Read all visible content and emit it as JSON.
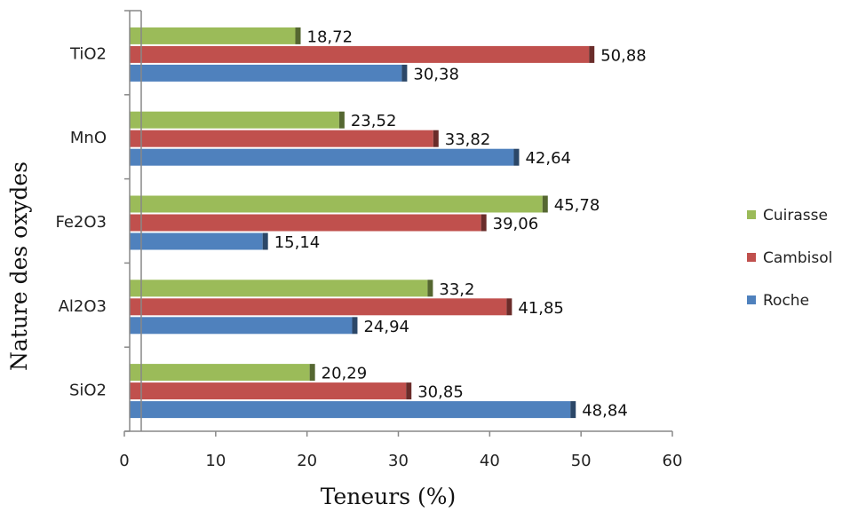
{
  "chart_data": {
    "type": "bar",
    "orientation": "horizontal",
    "categories": [
      "SiO2",
      "Al2O3",
      "Fe2O3",
      "MnO",
      "TiO2"
    ],
    "series": [
      {
        "name": "Roche",
        "color": "#4f81bd",
        "values": [
          48.84,
          24.94,
          15.14,
          42.64,
          30.38
        ],
        "labels": [
          "48,84",
          "24,94",
          "15,14",
          "42,64",
          "30,38"
        ]
      },
      {
        "name": "Cambisol",
        "color": "#c0504d",
        "values": [
          30.85,
          41.85,
          39.06,
          33.82,
          50.88
        ],
        "labels": [
          "30,85",
          "41,85",
          "39,06",
          "33,82",
          "50,88"
        ]
      },
      {
        "name": "Cuirasse",
        "color": "#9bbb59",
        "values": [
          20.29,
          33.2,
          45.78,
          23.52,
          18.72
        ],
        "labels": [
          "20,29",
          "33,2",
          "45,78",
          "23,52",
          "18,72"
        ]
      }
    ],
    "xlabel": "Teneurs (%)",
    "ylabel": "Nature des oxydes",
    "xlim": [
      0,
      60
    ],
    "xticks": [
      "0",
      "10",
      "20",
      "30",
      "40",
      "50",
      "60"
    ],
    "grid": false,
    "legend_position": "right"
  }
}
